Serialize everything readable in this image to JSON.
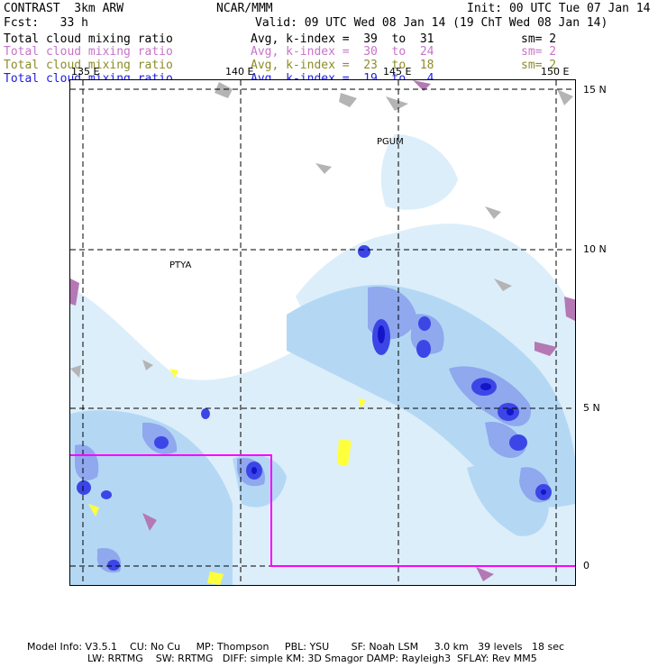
{
  "header": {
    "model_name": "CONTRAST  3km ARW",
    "org": "NCAR/MMM",
    "init": "Init: 00 UTC Tue 07 Jan 14",
    "fcst": "Fcst:   33 h",
    "valid": "Valid: 09 UTC Wed 08 Jan 14 (19 ChT Wed 08 Jan 14)"
  },
  "fields": [
    {
      "name": "Total cloud mixing ratio",
      "range": "Avg, k-index =  39  to  31",
      "smooth": "sm= 2",
      "color": "#000000"
    },
    {
      "name": "Total cloud mixing ratio",
      "range": "Avg, k-index =  30  to  24",
      "smooth": "sm= 2",
      "color": "#c873c8"
    },
    {
      "name": "Total cloud mixing ratio",
      "range": "Avg, k-index =  23  to  18",
      "smooth": "sm= 2",
      "color": "#8c8c28"
    },
    {
      "name": "Total cloud mixing ratio",
      "range": "Avg, k-index =  19  to   4",
      "smooth": "",
      "color": "#1e1edc"
    }
  ],
  "lon_labels": [
    "135 E",
    "140 E",
    "145 E",
    "150 E"
  ],
  "lat_labels": [
    "15 N",
    "10 N",
    "5 N",
    "0"
  ],
  "stations": [
    "PGUM",
    "PTYA"
  ],
  "footer": {
    "line1": "Model Info: V3.5.1    CU: No Cu     MP: Thompson     PBL: YSU       SF: Noah LSM     3.0 km   39 levels   18 sec",
    "line2": "LW: RRTMG    SW: RRTMG   DIFF: simple KM: 3D Smagor DAMP: Rayleigh3  SFLAY: Rev MM5"
  },
  "colors": {
    "cloud_light": "#dceefa",
    "cloud_mid": "#b4d8f4",
    "cloud_blue": "#8fa8ee",
    "cloud_dark": "#3c46e6",
    "cloud_core": "#1414c8",
    "gray": "#b4b4b4",
    "purple": "#b478b4",
    "yellow": "#ffff3c",
    "box": "#ff00ff"
  }
}
